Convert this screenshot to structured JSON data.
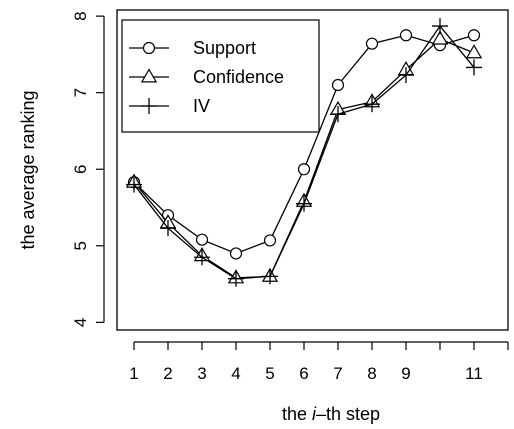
{
  "chart_data": {
    "type": "line",
    "xlabel_prefix": "the ",
    "xlabel_italic": "i",
    "xlabel_suffix": "–th step",
    "ylabel": "the average ranking",
    "x": [
      1,
      2,
      3,
      4,
      5,
      6,
      7,
      8,
      9,
      10,
      11
    ],
    "x_ticks": [
      1,
      2,
      3,
      4,
      5,
      6,
      7,
      8,
      9,
      10,
      11,
      12
    ],
    "x_tick_labels": [
      "1",
      "2",
      "3",
      "4",
      "5",
      "6",
      "7",
      "8",
      "9",
      "",
      "11",
      ""
    ],
    "y_ticks": [
      4,
      5,
      6,
      7,
      8
    ],
    "y_tick_labels": [
      "4",
      "5",
      "6",
      "7",
      "8"
    ],
    "xlim": [
      0.5,
      12
    ],
    "ylim": [
      3.9,
      8.08
    ],
    "grid": false,
    "legend_position": "top-left",
    "series": [
      {
        "name": "Support",
        "marker": "circle",
        "values": [
          5.83,
          5.4,
          5.08,
          4.9,
          5.07,
          6.0,
          7.1,
          7.64,
          7.75,
          7.62,
          7.75
        ]
      },
      {
        "name": "Confidence",
        "marker": "triangle",
        "values": [
          5.83,
          5.3,
          4.87,
          4.58,
          4.6,
          5.58,
          6.78,
          6.88,
          7.3,
          7.7,
          7.52
        ]
      },
      {
        "name": "IV",
        "marker": "plus",
        "values": [
          5.8,
          5.23,
          4.85,
          4.57,
          4.6,
          5.55,
          6.72,
          6.85,
          7.23,
          7.87,
          7.33
        ]
      }
    ]
  }
}
